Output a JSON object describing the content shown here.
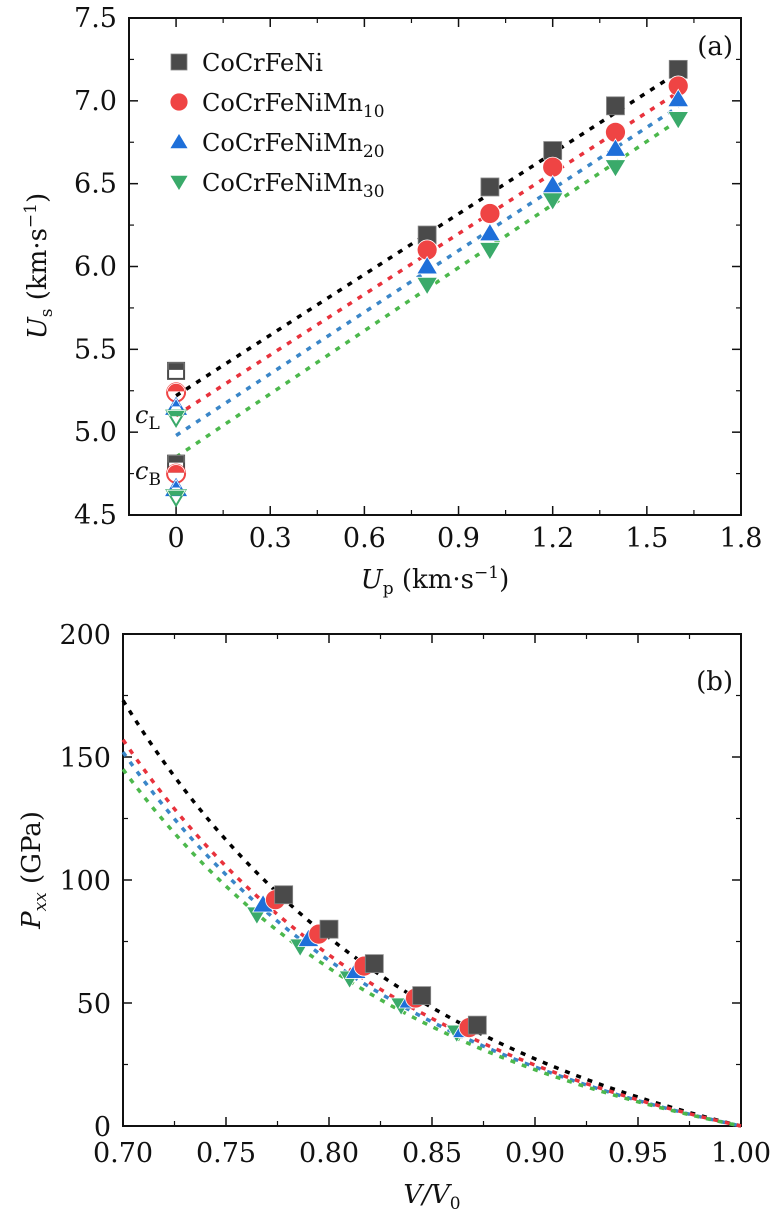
{
  "chart_data": [
    {
      "type": "scatter",
      "panel_label": "(a)",
      "title": "",
      "xlabel": "U_p (km·s^-1)",
      "xlabel_parts": {
        "main": "U",
        "sub": "p",
        "unit": " (km·s",
        "sup": "−1",
        "close": ")"
      },
      "ylabel": "U_s (km·s^-1)",
      "ylabel_parts": {
        "main": "U",
        "sub": "s",
        "unit": " (km·s",
        "sup": "−1",
        "close": ")"
      },
      "xlim": [
        -0.15,
        1.8
      ],
      "ylim": [
        4.5,
        7.5
      ],
      "xticks": [
        0,
        0.3,
        0.6,
        0.9,
        1.2,
        1.5,
        1.8
      ],
      "xtick_labels": [
        "0",
        "0.3",
        "0.6",
        "0.9",
        "1.2",
        "1.5",
        "1.8"
      ],
      "yticks": [
        4.5,
        5.0,
        5.5,
        6.0,
        6.5,
        7.0,
        7.5
      ],
      "ytick_labels": [
        "4.5",
        "5.0",
        "5.5",
        "6.0",
        "6.5",
        "7.0",
        "7.5"
      ],
      "legend_position": "top-left",
      "grid": false,
      "series": [
        {
          "name": "CoCrFeNi",
          "label_main": "CoCrFeNi",
          "label_sub": "",
          "marker": "square",
          "color": "#4a4a4a",
          "line_color": "#000000",
          "x": [
            0.8,
            1.0,
            1.2,
            1.4,
            1.6
          ],
          "y": [
            6.19,
            6.48,
            6.7,
            6.97,
            7.19
          ],
          "fit": {
            "intercept": 5.22,
            "slope": 1.22
          },
          "cL": 5.37,
          "cB": 4.81
        },
        {
          "name": "CoCrFeNiMn10",
          "label_main": "CoCrFeNiMn",
          "label_sub": "10",
          "marker": "circle",
          "color": "#ef4444",
          "line_color": "#e8323c",
          "x": [
            0.8,
            1.0,
            1.2,
            1.4,
            1.6
          ],
          "y": [
            6.1,
            6.32,
            6.6,
            6.81,
            7.09
          ],
          "fit": {
            "intercept": 5.1,
            "slope": 1.22
          },
          "cL": 5.24,
          "cB": 4.75
        },
        {
          "name": "CoCrFeNiMn20",
          "label_main": "CoCrFeNiMn",
          "label_sub": "20",
          "marker": "triangle-up",
          "color": "#1e6fd9",
          "line_color": "#3a86c8",
          "x": [
            0.8,
            1.0,
            1.2,
            1.4,
            1.6
          ],
          "y": [
            6.0,
            6.2,
            6.49,
            6.71,
            7.01
          ],
          "fit": {
            "intercept": 4.98,
            "slope": 1.24
          },
          "cL": 5.15,
          "cB": 4.66
        },
        {
          "name": "CoCrFeNiMn30",
          "label_main": "CoCrFeNiMn",
          "label_sub": "30",
          "marker": "triangle-down",
          "color": "#3aaa6a",
          "line_color": "#4cb84c",
          "x": [
            0.8,
            1.0,
            1.2,
            1.4,
            1.6
          ],
          "y": [
            5.89,
            6.1,
            6.4,
            6.6,
            6.89
          ],
          "fit": {
            "intercept": 4.85,
            "slope": 1.27
          },
          "cL": 5.09,
          "cB": 4.61
        }
      ],
      "annotations": [
        {
          "text": "c",
          "sub": "L",
          "x": 0,
          "y": 5.24
        },
        {
          "text": "c",
          "sub": "B",
          "x": 0,
          "y": 4.75
        }
      ]
    },
    {
      "type": "scatter",
      "panel_label": "(b)",
      "title": "",
      "xlabel": "V/V_0",
      "xlabel_parts": {
        "main": "V/V",
        "sub": "0"
      },
      "ylabel": "P_xx (GPa)",
      "ylabel_parts": {
        "main": "P",
        "sub": "xx",
        "unit": " (GPa)"
      },
      "xlim": [
        0.7,
        1.0
      ],
      "ylim": [
        0,
        200
      ],
      "xticks": [
        0.7,
        0.75,
        0.8,
        0.85,
        0.9,
        0.95,
        1.0
      ],
      "xtick_labels": [
        "0.70",
        "0.75",
        "0.80",
        "0.85",
        "0.90",
        "0.95",
        "1.00"
      ],
      "yticks": [
        0,
        50,
        100,
        150,
        200
      ],
      "ytick_labels": [
        "0",
        "50",
        "100",
        "150",
        "200"
      ],
      "grid": false,
      "series": [
        {
          "name": "CoCrFeNi",
          "marker": "square",
          "color": "#4a4a4a",
          "line_color": "#000000",
          "x": [
            0.778,
            0.8,
            0.822,
            0.845,
            0.872
          ],
          "y": [
            94,
            80,
            66,
            53,
            41
          ],
          "fit_at_0.70": 173
        },
        {
          "name": "CoCrFeNiMn10",
          "marker": "circle",
          "color": "#ef4444",
          "line_color": "#e8323c",
          "x": [
            0.774,
            0.795,
            0.817,
            0.842,
            0.868
          ],
          "y": [
            92,
            78,
            65,
            52,
            40
          ],
          "fit_at_0.70": 157
        },
        {
          "name": "CoCrFeNiMn20",
          "marker": "triangle-up",
          "color": "#1e6fd9",
          "line_color": "#3a86c8",
          "x": [
            0.768,
            0.79,
            0.813,
            0.839,
            0.865
          ],
          "y": [
            90,
            76,
            63,
            51,
            39
          ],
          "fit_at_0.70": 152
        },
        {
          "name": "CoCrFeNiMn30",
          "marker": "triangle-down",
          "color": "#3aaa6a",
          "line_color": "#4cb84c",
          "x": [
            0.765,
            0.786,
            0.81,
            0.835,
            0.862
          ],
          "y": [
            86,
            73,
            60,
            49,
            38
          ],
          "fit_at_0.70": 145
        }
      ]
    }
  ]
}
